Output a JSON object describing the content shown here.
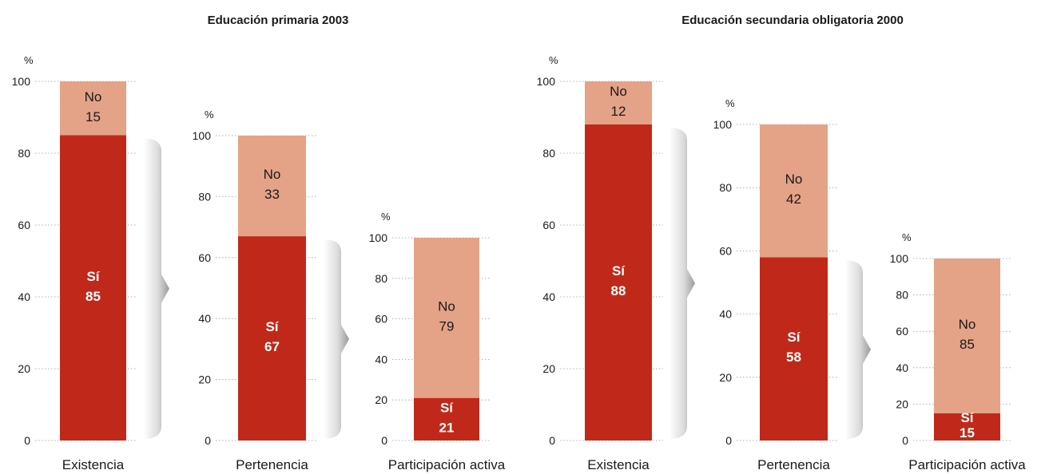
{
  "chart_data": [
    {
      "type": "bar",
      "title": "Educación primaria 2003",
      "unit": "%",
      "ylim": [
        0,
        100
      ],
      "yticks": [
        0,
        20,
        40,
        60,
        80,
        100
      ],
      "stacked": true,
      "categories": [
        "Existencia",
        "Pertenencia",
        "Participación activa"
      ],
      "series": [
        {
          "name": "Sí",
          "values": [
            85,
            67,
            21
          ],
          "color": "#c0291a"
        },
        {
          "name": "No",
          "values": [
            15,
            33,
            79
          ],
          "color": "#e4a287"
        }
      ]
    },
    {
      "type": "bar",
      "title": "Educación secundaria obligatoria 2000",
      "unit": "%",
      "ylim": [
        0,
        100
      ],
      "yticks": [
        0,
        20,
        40,
        60,
        80,
        100
      ],
      "stacked": true,
      "categories": [
        "Existencia",
        "Pertenencia",
        "Participación activa"
      ],
      "series": [
        {
          "name": "Sí",
          "values": [
            88,
            58,
            15
          ],
          "color": "#c0291a"
        },
        {
          "name": "No",
          "values": [
            12,
            42,
            85
          ],
          "color": "#e4a287"
        }
      ]
    }
  ]
}
